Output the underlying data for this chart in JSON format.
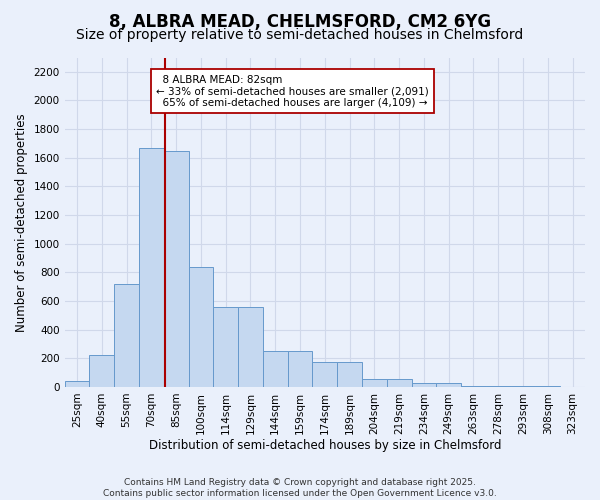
{
  "title": "8, ALBRA MEAD, CHELMSFORD, CM2 6YG",
  "subtitle": "Size of property relative to semi-detached houses in Chelmsford",
  "xlabel": "Distribution of semi-detached houses by size in Chelmsford",
  "ylabel": "Number of semi-detached properties",
  "categories": [
    "25sqm",
    "40sqm",
    "55sqm",
    "70sqm",
    "85sqm",
    "100sqm",
    "114sqm",
    "129sqm",
    "144sqm",
    "159sqm",
    "174sqm",
    "189sqm",
    "204sqm",
    "219sqm",
    "234sqm",
    "249sqm",
    "263sqm",
    "278sqm",
    "293sqm",
    "308sqm",
    "323sqm"
  ],
  "values": [
    45,
    220,
    720,
    1670,
    1650,
    840,
    555,
    555,
    250,
    250,
    175,
    175,
    55,
    55,
    25,
    25,
    10,
    10,
    5,
    5,
    0
  ],
  "bar_color": "#c5d8f0",
  "bar_edge_color": "#6699cc",
  "background_color": "#eaf0fb",
  "grid_color": "#d0d8ea",
  "property_label": "8 ALBRA MEAD: 82sqm",
  "pct_smaller": 33,
  "pct_larger": 65,
  "n_smaller": 2091,
  "n_larger": 4109,
  "vline_x": 3.55,
  "annotation_box_color": "#ffffff",
  "annotation_box_edge_color": "#aa0000",
  "vline_color": "#aa0000",
  "ylim": [
    0,
    2300
  ],
  "yticks": [
    0,
    200,
    400,
    600,
    800,
    1000,
    1200,
    1400,
    1600,
    1800,
    2000,
    2200
  ],
  "footer": "Contains HM Land Registry data © Crown copyright and database right 2025.\nContains public sector information licensed under the Open Government Licence v3.0.",
  "title_fontsize": 12,
  "subtitle_fontsize": 10,
  "axis_label_fontsize": 8.5,
  "tick_fontsize": 7.5,
  "annotation_fontsize": 7.5,
  "footer_fontsize": 6.5
}
